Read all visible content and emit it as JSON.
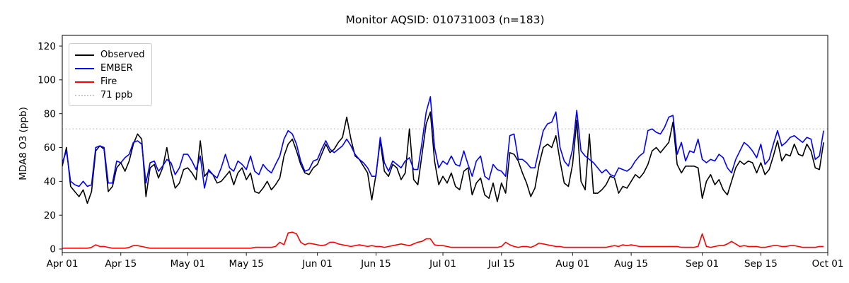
{
  "chart_data": {
    "type": "line",
    "title": "Monitor AQSID: 010731003 (n=183)",
    "xlabel": "",
    "ylabel": "MDA8 O3 (ppb)",
    "x_start_date": "Apr 01",
    "x_end_date": "Oct 01",
    "n_points": 183,
    "x_range": [
      0,
      183
    ],
    "ylim": [
      -2.1,
      126.3
    ],
    "yticks": [
      0,
      20,
      40,
      60,
      80,
      100,
      120
    ],
    "grid": false,
    "xticks": [
      {
        "day": 0,
        "label": "Apr 01"
      },
      {
        "day": 14,
        "label": "Apr 15"
      },
      {
        "day": 30,
        "label": "May 01"
      },
      {
        "day": 44,
        "label": "May 15"
      },
      {
        "day": 61,
        "label": "Jun 01"
      },
      {
        "day": 75,
        "label": "Jun 15"
      },
      {
        "day": 91,
        "label": "Jul 01"
      },
      {
        "day": 105,
        "label": "Jul 15"
      },
      {
        "day": 122,
        "label": "Aug 01"
      },
      {
        "day": 136,
        "label": "Aug 15"
      },
      {
        "day": 153,
        "label": "Sep 01"
      },
      {
        "day": 167,
        "label": "Sep 15"
      },
      {
        "day": 183,
        "label": "Oct 01"
      }
    ],
    "threshold": {
      "value": 71,
      "label": "71 ppb",
      "color": "#c8c8c8",
      "style": "dotted"
    },
    "legend": {
      "position": "upper-left",
      "entries": [
        {
          "label": "Observed",
          "color": "#000000",
          "style": "solid"
        },
        {
          "label": "EMBER",
          "color": "#0000ff",
          "style": "solid"
        },
        {
          "label": "Fire",
          "color": "#ff0000",
          "style": "solid"
        },
        {
          "label": "71 ppb",
          "color": "#c8c8c8",
          "style": "dotted"
        }
      ]
    },
    "series": [
      {
        "name": "Observed",
        "color": "#000000",
        "values": [
          49,
          60,
          37,
          34,
          31,
          35,
          27,
          34,
          58,
          61,
          59,
          34,
          37,
          48,
          51,
          46,
          52,
          62,
          68,
          65,
          31,
          48,
          50,
          42,
          48,
          60,
          46,
          36,
          39,
          47,
          48,
          45,
          41,
          64,
          43,
          46,
          44,
          39,
          40,
          43,
          46,
          38,
          45,
          48,
          41,
          45,
          34,
          33,
          36,
          40,
          35,
          38,
          42,
          55,
          62,
          65,
          58,
          50,
          45,
          44,
          48,
          50,
          56,
          62,
          57,
          59,
          63,
          66,
          78,
          65,
          55,
          53,
          49,
          45,
          29,
          44,
          64,
          46,
          43,
          50,
          48,
          41,
          45,
          71,
          41,
          38,
          56,
          74,
          81,
          52,
          38,
          43,
          39,
          45,
          37,
          35,
          46,
          48,
          32,
          39,
          42,
          32,
          30,
          39,
          28,
          39,
          33,
          57,
          56,
          52,
          45,
          39,
          31,
          36,
          50,
          60,
          62,
          60,
          67,
          52,
          39,
          37,
          50,
          76,
          40,
          35,
          68,
          33,
          33,
          35,
          38,
          43,
          42,
          33,
          37,
          36,
          40,
          44,
          42,
          45,
          50,
          58,
          60,
          57,
          60,
          63,
          75,
          50,
          45,
          49,
          49,
          49,
          48,
          30,
          40,
          44,
          38,
          41,
          35,
          32,
          40,
          48,
          52,
          50,
          52,
          51,
          45,
          51,
          44,
          47,
          55,
          64,
          52,
          56,
          55,
          62,
          56,
          55,
          62,
          58,
          48,
          47,
          63
        ]
      },
      {
        "name": "EMBER",
        "color": "#0000ff",
        "values": [
          51,
          58,
          40,
          38,
          37,
          40,
          37,
          38,
          60,
          61,
          60,
          39,
          39,
          52,
          51,
          54,
          56,
          63,
          64,
          62,
          39,
          51,
          52,
          46,
          49,
          53,
          51,
          44,
          48,
          56,
          56,
          52,
          47,
          55,
          36,
          47,
          44,
          42,
          48,
          56,
          48,
          46,
          52,
          50,
          47,
          55,
          46,
          44,
          50,
          47,
          45,
          50,
          55,
          65,
          70,
          68,
          62,
          52,
          46,
          47,
          52,
          53,
          59,
          64,
          59,
          57,
          59,
          61,
          65,
          61,
          56,
          53,
          51,
          48,
          43,
          43,
          66,
          51,
          46,
          52,
          50,
          48,
          52,
          54,
          47,
          47,
          63,
          81,
          90,
          60,
          48,
          52,
          50,
          55,
          50,
          49,
          58,
          50,
          43,
          52,
          55,
          43,
          41,
          50,
          47,
          46,
          43,
          67,
          68,
          53,
          53,
          51,
          48,
          48,
          59,
          70,
          74,
          75,
          81,
          60,
          52,
          49,
          59,
          82,
          58,
          55,
          53,
          51,
          48,
          45,
          47,
          44,
          43,
          48,
          47,
          46,
          48,
          52,
          55,
          57,
          70,
          71,
          69,
          68,
          72,
          78,
          79,
          56,
          63,
          52,
          58,
          57,
          65,
          53,
          51,
          53,
          52,
          56,
          54,
          48,
          45,
          53,
          58,
          63,
          61,
          58,
          54,
          62,
          50,
          53,
          62,
          70,
          61,
          63,
          66,
          67,
          65,
          63,
          66,
          65,
          53,
          55,
          70
        ]
      },
      {
        "name": "Fire",
        "color": "#ff0000",
        "values": [
          0.5,
          0.5,
          0.5,
          0.5,
          0.5,
          0.5,
          0.5,
          1,
          2.5,
          1.5,
          1.5,
          1,
          0.5,
          0.5,
          0.5,
          0.5,
          1,
          2,
          2,
          1.5,
          1,
          0.5,
          0.5,
          0.5,
          0.5,
          0.5,
          0.5,
          0.5,
          0.5,
          0.5,
          0.5,
          0.5,
          0.5,
          0.5,
          0.5,
          0.5,
          0.5,
          0.5,
          0.5,
          0.5,
          0.5,
          0.5,
          0.5,
          0.5,
          0.5,
          0.5,
          1,
          1,
          1,
          1,
          1,
          1.5,
          4,
          2.5,
          9.5,
          10,
          9,
          4,
          2.5,
          3.5,
          3,
          2.5,
          2,
          2.5,
          4,
          4,
          3,
          2.5,
          2,
          1.5,
          2,
          2.5,
          2,
          1.5,
          2,
          1.5,
          1.5,
          1,
          1.5,
          2,
          2.5,
          3,
          2.5,
          2,
          3,
          4,
          4.5,
          6,
          6,
          2.5,
          2,
          2,
          1.5,
          1,
          1,
          1,
          1,
          1,
          1,
          1,
          1,
          1,
          1,
          1,
          1,
          1.5,
          4,
          2.5,
          1.5,
          1,
          1.5,
          1.5,
          1,
          2,
          3.5,
          3,
          2.5,
          2,
          1.5,
          1.5,
          1,
          1,
          1,
          1,
          1,
          1,
          1,
          1,
          1,
          1,
          1,
          1.5,
          2,
          1.5,
          2.5,
          2,
          2.5,
          2,
          1.5,
          1.5,
          1.5,
          1.5,
          1.5,
          1.5,
          1.5,
          1.5,
          1.5,
          1.5,
          1,
          1,
          1,
          1,
          1.5,
          9,
          1.5,
          1,
          1.5,
          2,
          2,
          3,
          4.5,
          3,
          1.5,
          2,
          1.5,
          1.5,
          1.5,
          1,
          1,
          1.5,
          2,
          2,
          1.5,
          1.5,
          2,
          2,
          1.5,
          1,
          1,
          1,
          1,
          1.5,
          1.5
        ]
      }
    ]
  }
}
